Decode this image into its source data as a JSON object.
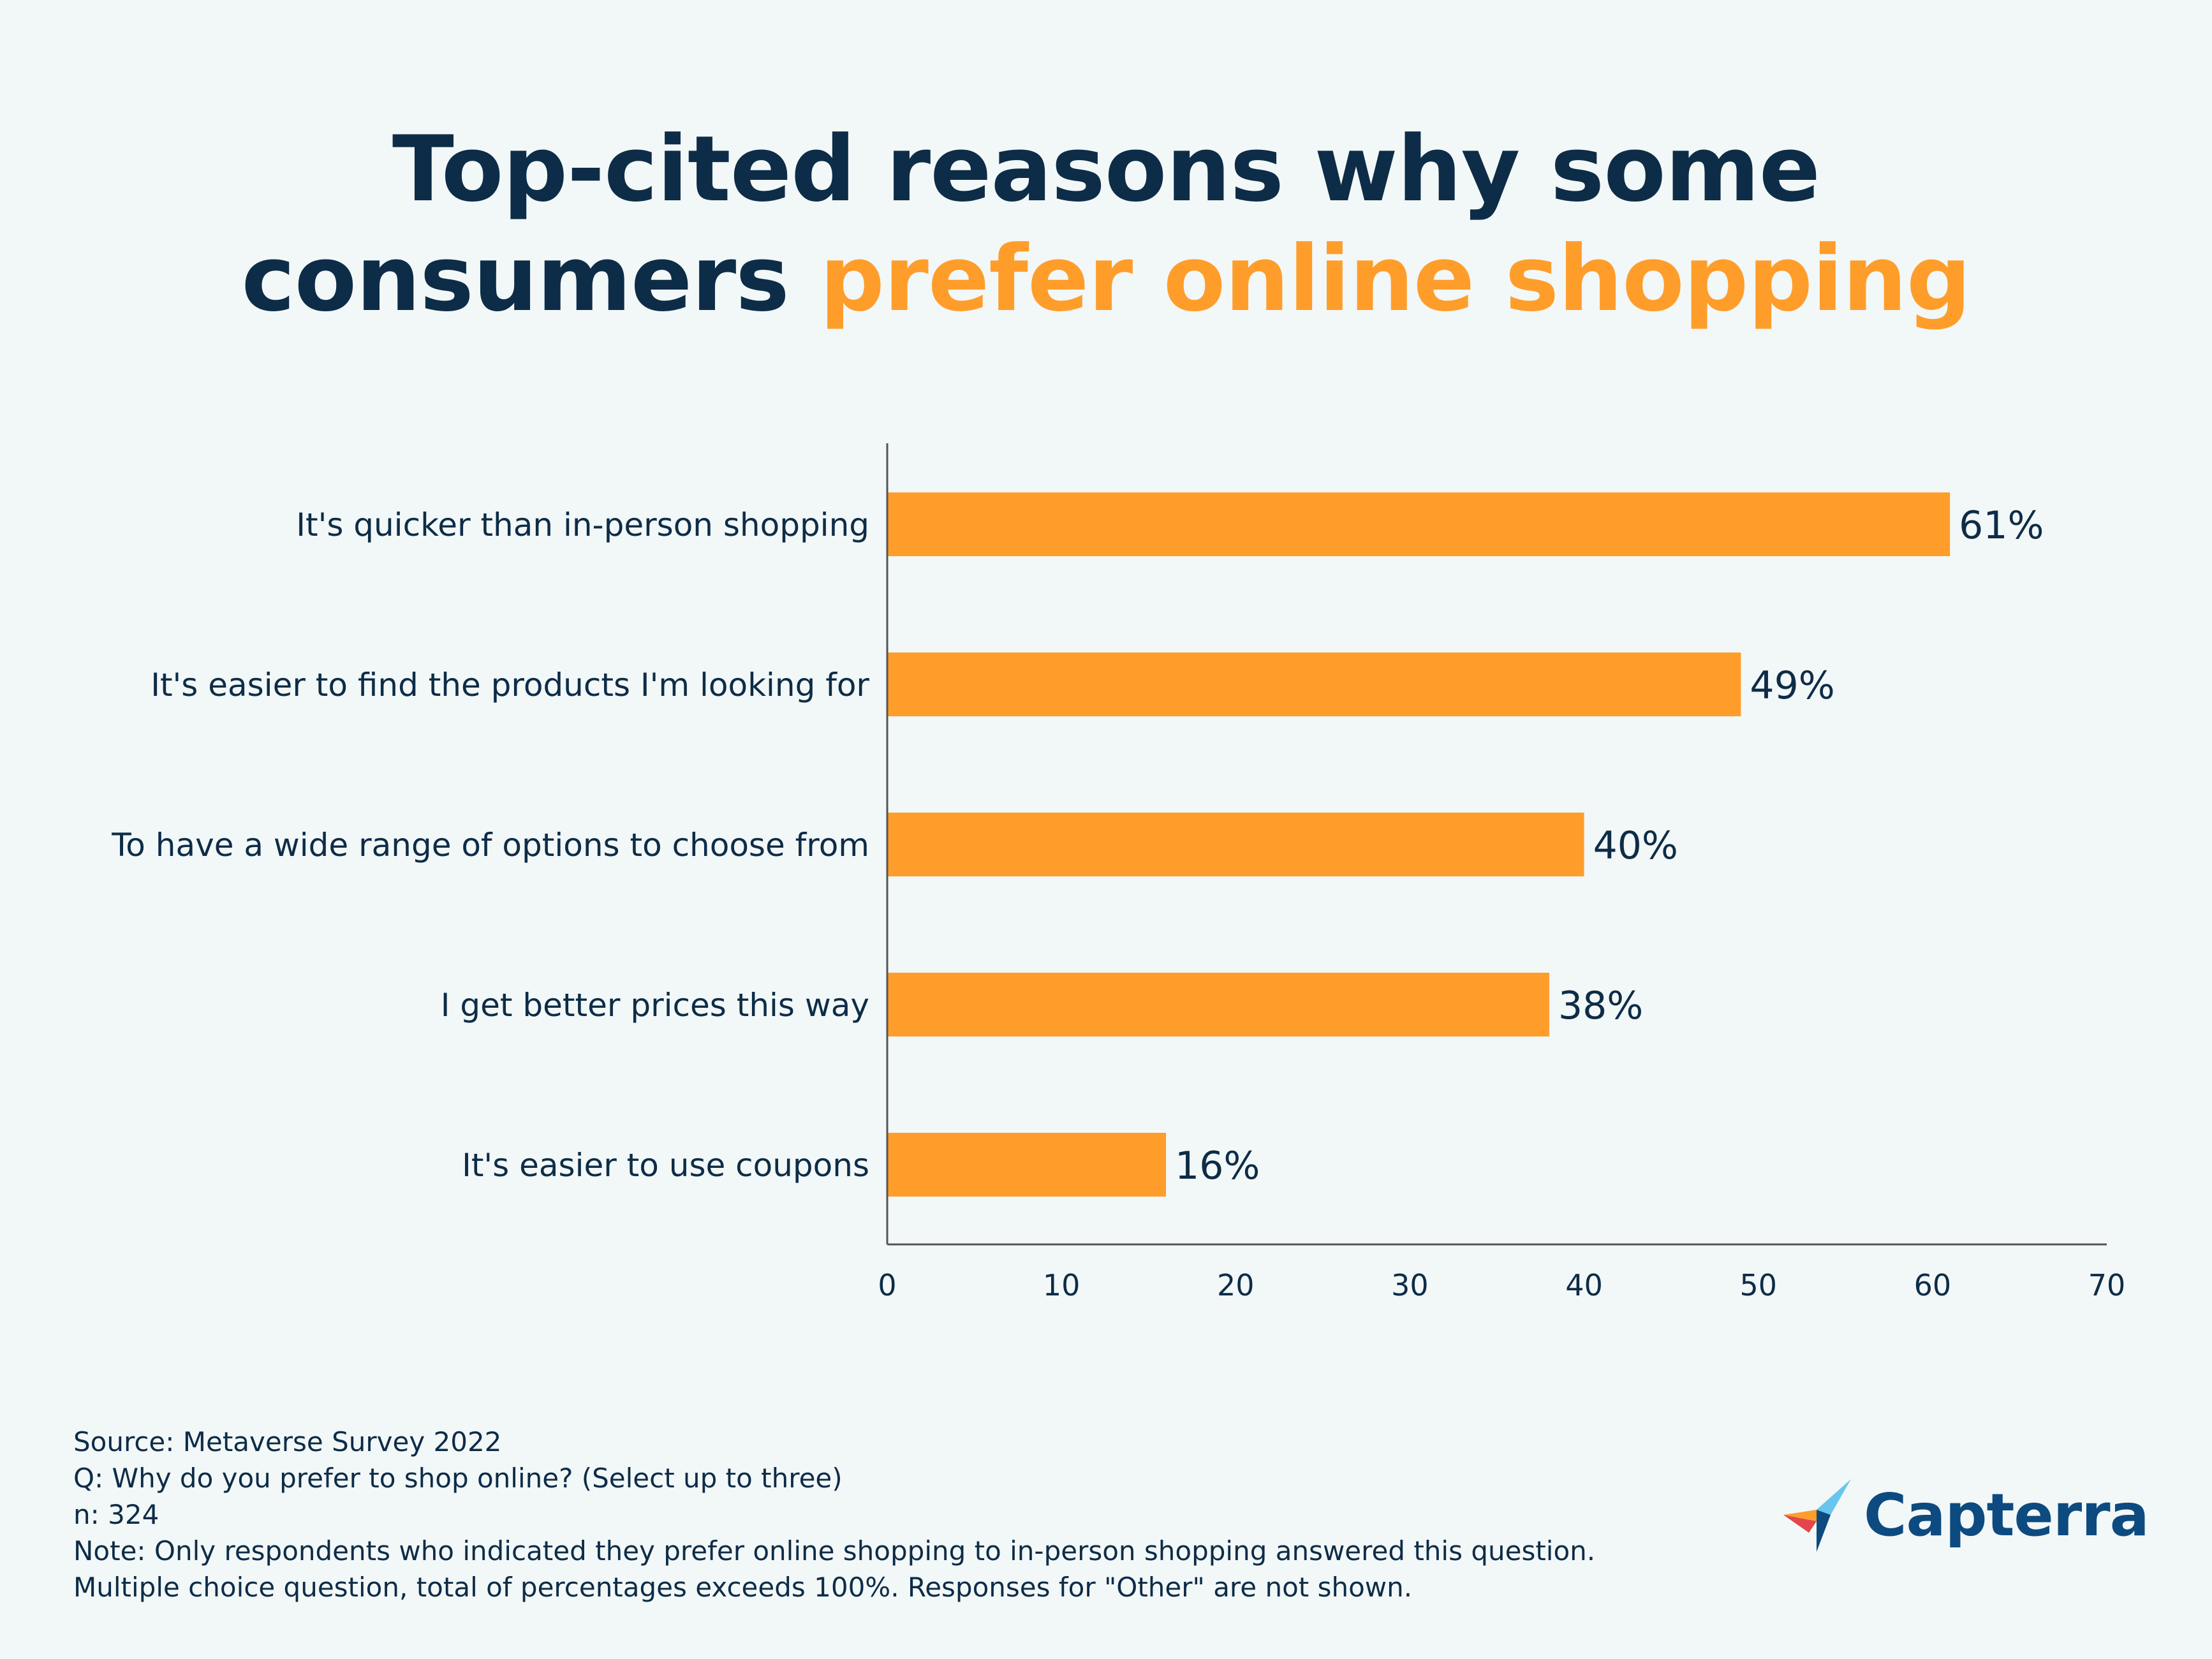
{
  "title": {
    "line1": "Top-cited reasons why some",
    "line2_plain": "consumers ",
    "line2_accent": "prefer online shopping"
  },
  "colors": {
    "bar": "#ff9d2b",
    "text": "#0d2c47",
    "accent": "#ff9d2b",
    "background": "#f2f7f7",
    "axis": "#555555"
  },
  "chart_data": {
    "type": "bar",
    "orientation": "horizontal",
    "categories": [
      "It's quicker than in-person shopping",
      "It's easier to find the products I'm looking for",
      "To have a wide range of options to choose from",
      "I get better prices this way",
      "It's easier to use coupons"
    ],
    "values": [
      61,
      49,
      40,
      38,
      16
    ],
    "value_labels": [
      "61%",
      "49%",
      "40%",
      "38%",
      "16%"
    ],
    "xlim": [
      0,
      70
    ],
    "x_ticks": [
      0,
      10,
      20,
      30,
      40,
      50,
      60,
      70
    ],
    "grid": false,
    "legend": "none"
  },
  "footer": {
    "source": "Source: Metaverse Survey 2022",
    "question": "Q: Why do you prefer to shop online? (Select up to three)",
    "n": "n: 324",
    "note1": "Note: Only respondents who indicated they prefer online shopping to in-person shopping answered this question.",
    "note2": "Multiple choice question, total of percentages exceeds 100%. Responses for \"Other\" are not shown."
  },
  "logo": {
    "text": "Capterra",
    "icon": "capterra-arrow-icon"
  }
}
